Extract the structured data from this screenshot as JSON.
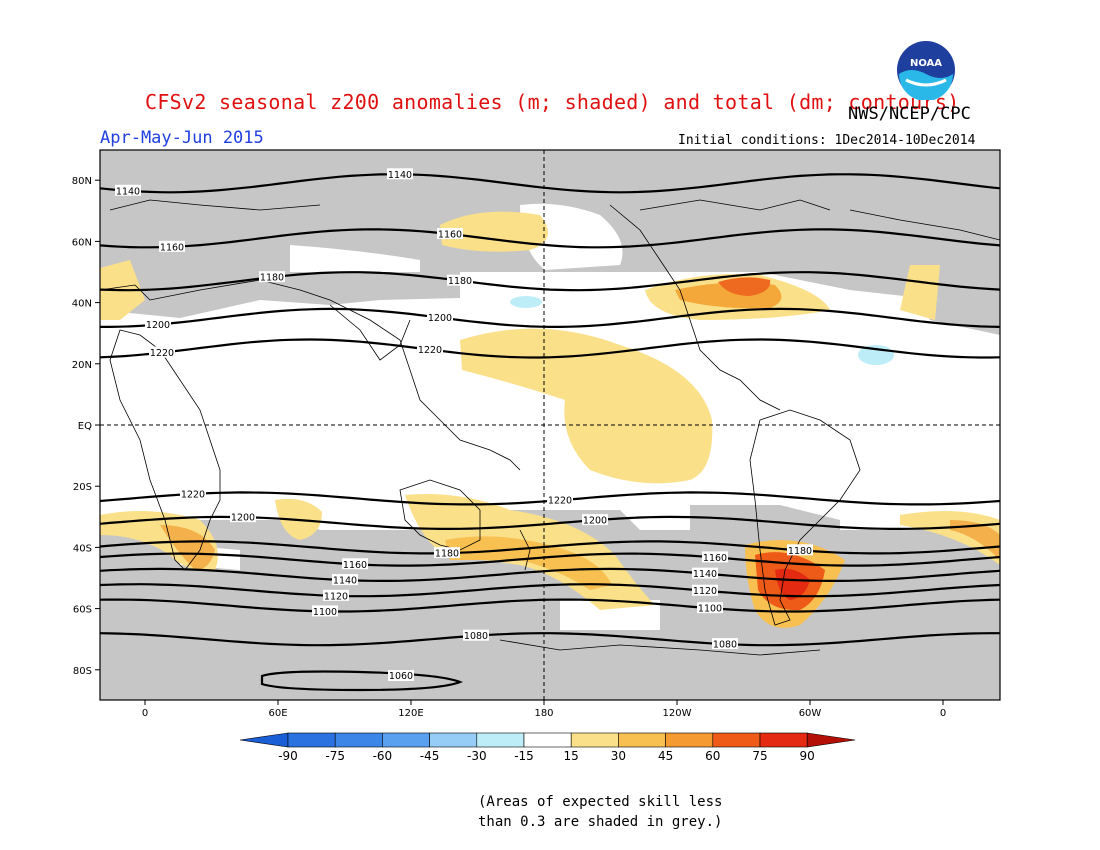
{
  "header": {
    "title": "CFSv2 seasonal z200 anomalies (m; shaded) and total (dm; contours)",
    "agency": "NWS/NCEP/CPC",
    "period": "Apr-May-Jun 2015",
    "initial_conditions": "Initial conditions: 1Dec2014-10Dec2014",
    "logo_text": "NOAA"
  },
  "axes": {
    "lat_labels": [
      "80N",
      "60N",
      "40N",
      "20N",
      "EQ",
      "20S",
      "40S",
      "60S",
      "80S"
    ],
    "lon_labels": [
      "0",
      "60E",
      "120E",
      "180",
      "120W",
      "60W",
      "0"
    ]
  },
  "contours": [
    {
      "value": "1140",
      "lat": 79
    },
    {
      "value": "1160",
      "lat": 61
    },
    {
      "value": "1180",
      "lat": 47
    },
    {
      "value": "1200",
      "lat": 35
    },
    {
      "value": "1220",
      "lat": 25
    },
    {
      "value": "1220",
      "lat": -24
    },
    {
      "value": "1200",
      "lat": -32
    },
    {
      "value": "1180",
      "lat": -40
    },
    {
      "value": "1160",
      "lat": -44
    },
    {
      "value": "1140",
      "lat": -49
    },
    {
      "value": "1120",
      "lat": -54
    },
    {
      "value": "1100",
      "lat": -59
    },
    {
      "value": "1080",
      "lat": -70
    },
    {
      "value": "1060",
      "lat": -83
    }
  ],
  "colorbar": {
    "ticks": [
      "-90",
      "-75",
      "-60",
      "-45",
      "-30",
      "-15",
      "15",
      "30",
      "45",
      "60",
      "75",
      "90"
    ],
    "colors": [
      "#1a5fd6",
      "#2a72e0",
      "#3c86e8",
      "#5aa2f0",
      "#96cdf6",
      "#bdeef8",
      "#ffffff",
      "#fbe08a",
      "#f8c050",
      "#f49a30",
      "#ee5a18",
      "#e42a10",
      "#b41008"
    ]
  },
  "note": [
    "(Areas of expected skill less",
    "than 0.3 are shaded in grey.)"
  ]
}
